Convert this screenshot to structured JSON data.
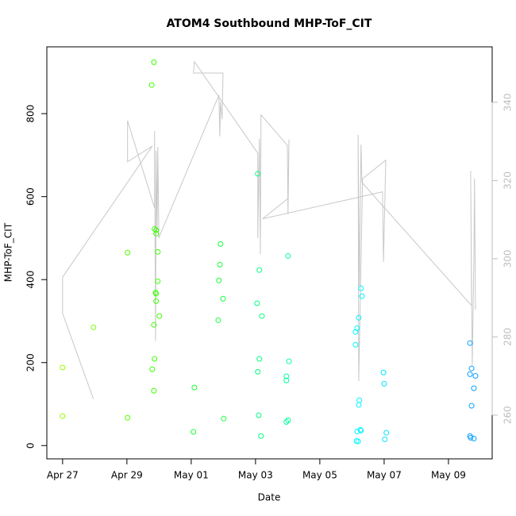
{
  "chart_data": {
    "type": "scatter",
    "title": "ATOM4 Southbound MHP-ToF_CIT",
    "xlabel": "Date",
    "ylabel": "MHP-ToF_CIT",
    "xlim": [
      -0.49,
      13.36
    ],
    "xticks": [
      {
        "value": 0,
        "label": "Apr 27"
      },
      {
        "value": 2,
        "label": "Apr 29"
      },
      {
        "value": 4,
        "label": "May 01"
      },
      {
        "value": 6,
        "label": "May 03"
      },
      {
        "value": 8,
        "label": "May 05"
      },
      {
        "value": 10,
        "label": "May 07"
      },
      {
        "value": 12,
        "label": "May 09"
      }
    ],
    "ylim": [
      -32,
      961
    ],
    "yticks": [
      0,
      200,
      400,
      600,
      800
    ],
    "y2lim": [
      248.8,
      354.2
    ],
    "y2ticks": [
      260,
      280,
      300,
      320,
      340
    ],
    "y2color": "#bebebe",
    "x": [
      0,
      0,
      0.96,
      2.02,
      2.02,
      2.84,
      2.77,
      2.86,
      2.91,
      2.91,
      2.96,
      2.96,
      2.89,
      2.91,
      2.91,
      3.01,
      2.84,
      2.86,
      2.79,
      2.84,
      4.07,
      4.1,
      4.91,
      4.89,
      4.86,
      4.99,
      4.84,
      5.01,
      6.07,
      6.12,
      6.05,
      6.2,
      6.12,
      6.07,
      6.1,
      6.17,
      7.01,
      7.04,
      6.96,
      6.96,
      7.01,
      6.96,
      9.28,
      9.31,
      9.21,
      9.16,
      9.11,
      9.11,
      9.23,
      9.21,
      9.26,
      9.16,
      9.28,
      9.19,
      9.14,
      9.98,
      10.0,
      10.07,
      10.02,
      12.67,
      12.72,
      12.67,
      12.84,
      12.79,
      12.72,
      12.67,
      12.69,
      12.79
    ],
    "values": [
      188,
      71,
      285,
      465,
      67,
      924,
      869,
      522,
      519,
      511,
      467,
      396,
      369,
      366,
      348,
      312,
      291,
      209,
      184,
      132,
      33,
      140,
      486,
      436,
      398,
      354,
      302,
      65,
      655,
      423,
      343,
      312,
      209,
      178,
      73,
      23,
      457,
      203,
      167,
      157,
      61,
      57,
      379,
      360,
      308,
      283,
      274,
      243,
      109,
      98,
      38,
      34,
      36,
      10,
      11,
      176,
      149,
      31,
      15,
      247,
      186,
      172,
      168,
      138,
      96,
      23,
      19,
      17
    ],
    "colors": [
      "#99ff00",
      "#99ff00",
      "#80ff00",
      "#55ff00",
      "#55ff00",
      "#3cff00",
      "#3cff00",
      "#3cff00",
      "#3cff00",
      "#3cff00",
      "#3cff00",
      "#3cff00",
      "#3cff00",
      "#3cff00",
      "#3cff00",
      "#3cff00",
      "#3cff00",
      "#3cff00",
      "#3cff00",
      "#3cff00",
      "#19ff33",
      "#19ff33",
      "#1aff40",
      "#1aff40",
      "#1aff40",
      "#1aff40",
      "#1aff40",
      "#1aff40",
      "#00ff80",
      "#00ff80",
      "#00ff80",
      "#00ff80",
      "#00ff80",
      "#00ff80",
      "#00ff80",
      "#00ff80",
      "#00ff99",
      "#00ff99",
      "#00ff99",
      "#00ff99",
      "#00ff99",
      "#00ff99",
      "#00f5ff",
      "#00f5ff",
      "#00f5ff",
      "#00f5ff",
      "#00f5ff",
      "#00f5ff",
      "#00f5ff",
      "#00f5ff",
      "#00f5ff",
      "#00f5ff",
      "#00f5ff",
      "#00f5ff",
      "#00f5ff",
      "#00e5ff",
      "#00e5ff",
      "#00e5ff",
      "#00e5ff",
      "#0aa0ff",
      "#0aa0ff",
      "#0aa0ff",
      "#0aa0ff",
      "#0aa0ff",
      "#0aa0ff",
      "#0aa0ff",
      "#0aa0ff",
      "#0aa0ff"
    ],
    "line": {
      "axis": "y2",
      "color": "#c8c8c8",
      "x": [
        0.96,
        0,
        0,
        2.79,
        2.02,
        2.02,
        2.86,
        2.86,
        2.89,
        2.91,
        2.94,
        2.96,
        2.99,
        2.99,
        4.86,
        4.89,
        4.91,
        4.96,
        4.99,
        4.07,
        4.1,
        6.07,
        6.07,
        6.12,
        6.15,
        6.17,
        6.99,
        7.01,
        7.04,
        7.01,
        6.22,
        9.95,
        9.98,
        10.05,
        9.33,
        9.21,
        9.19,
        9.23,
        9.28,
        9.31,
        12.72,
        12.69,
        12.74,
        12.79,
        12.81,
        12.84
      ],
      "values": [
        264.1,
        286.0,
        295.3,
        328.8,
        324.8,
        335.3,
        313.0,
        332.7,
        278.9,
        327.6,
        307.3,
        328.6,
        309.3,
        305.3,
        341.8,
        331.3,
        340.2,
        335.7,
        347.5,
        347.5,
        350.4,
        327.0,
        305.3,
        330.7,
        301.2,
        336.8,
        329.0,
        311.4,
        330.5,
        315.4,
        310.2,
        317.1,
        299.2,
        325.2,
        320.5,
        268.7,
        331.7,
        293.1,
        329.2,
        319.5,
        288.0,
        322.5,
        272.8,
        299.2,
        320.5,
        287.0
      ]
    }
  }
}
